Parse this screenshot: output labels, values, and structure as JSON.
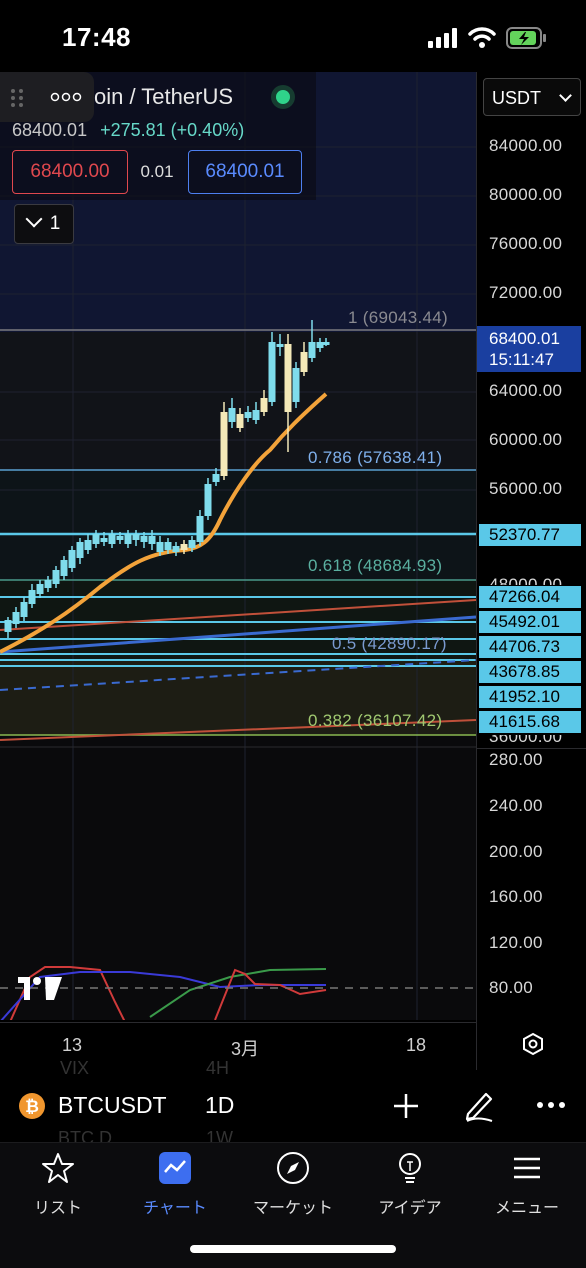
{
  "status": {
    "time": "17:48"
  },
  "header": {
    "symbol_title": "oin / TetherUS",
    "last_price": "68400.01",
    "change": "+275.81 (+0.40%)",
    "sell_price": "68400.00",
    "spread": "0.01",
    "buy_price": "68400.01",
    "collapse_count": "1",
    "currency": "USDT"
  },
  "price_axis": {
    "ticks": [
      "84000.00",
      "80000.00",
      "76000.00",
      "72000.00",
      "64000.00",
      "60000.00",
      "56000.00"
    ],
    "current_price": "68400.01",
    "countdown": "15:11:47",
    "level_labels": [
      "52370.77",
      "47266.04",
      "45492.01",
      "44706.73",
      "43678.85",
      "41952.10",
      "41615.68"
    ],
    "partial_tick": "48000.00",
    "partial_tick_low": "36000.00"
  },
  "fib": {
    "level_1": "1 (69043.44)",
    "level_0786": "0.786 (57638.41)",
    "level_0618": "0.618 (48684.93)",
    "level_05": "0.5 (42890.17)",
    "level_0382": "0.382 (36107.42)"
  },
  "indicator_axis": {
    "ticks": [
      "280.00",
      "240.00",
      "200.00",
      "160.00",
      "120.00",
      "80.00"
    ]
  },
  "time_axis": {
    "ticks": [
      "13",
      "3月",
      "18"
    ]
  },
  "symbol_bar": {
    "symbol": "BTCUSDT",
    "interval": "1D",
    "ghost_1": "VIX",
    "ghost_2": "4H",
    "ghost_3": "BTC.D",
    "ghost_4": "1W"
  },
  "tabs": [
    {
      "label": "リスト",
      "icon": "star-icon"
    },
    {
      "label": "チャート",
      "icon": "chart-icon"
    },
    {
      "label": "マーケット",
      "icon": "compass-icon"
    },
    {
      "label": "アイデア",
      "icon": "lightbulb-icon"
    },
    {
      "label": "メニュー",
      "icon": "menu-icon"
    }
  ],
  "colors": {
    "accent": "#3d6ef0",
    "candle": "#7fdcec",
    "fib_line": "#5ac8e8",
    "ma_line": "#f3a33a",
    "sell": "#e0484e",
    "current_price_bg": "#1a3fa0"
  }
}
